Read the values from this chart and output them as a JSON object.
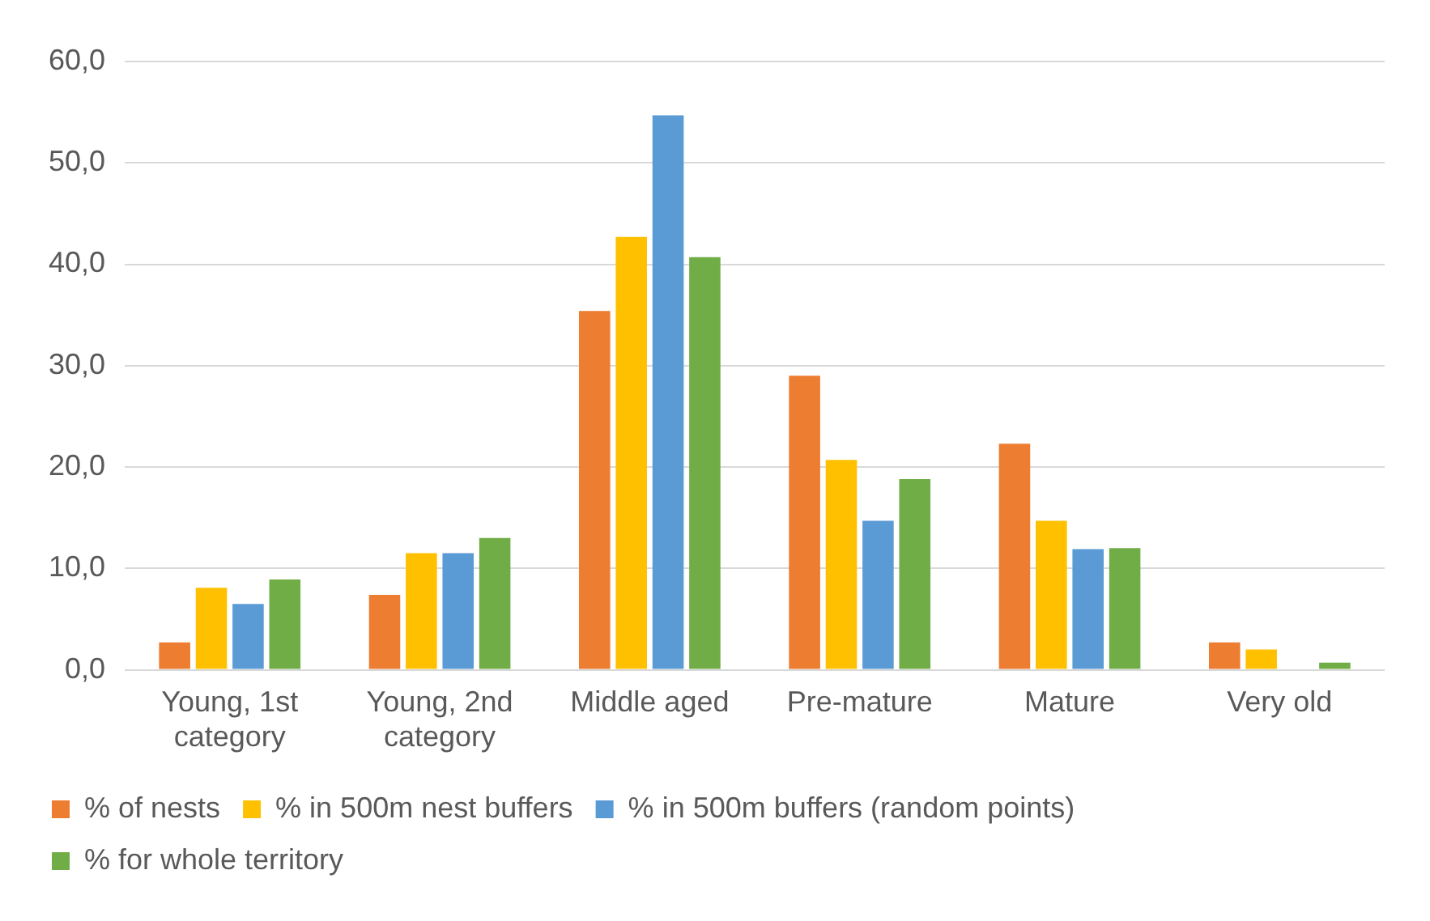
{
  "chart_data": {
    "type": "bar",
    "categories": [
      "Young, 1st category",
      "Young, 2nd category",
      "Middle aged",
      "Pre-mature",
      "Mature",
      "Very old"
    ],
    "series": [
      {
        "name": "% of nests",
        "color": "#ed7d31",
        "values": [
          2.7,
          7.4,
          35.4,
          29.0,
          22.3,
          2.7
        ]
      },
      {
        "name": "% in 500m nest buffers",
        "color": "#ffc000",
        "values": [
          8.1,
          11.5,
          42.7,
          20.7,
          14.7,
          2.0
        ]
      },
      {
        "name": "% in 500m buffers (random points)",
        "color": "#5b9bd5",
        "values": [
          6.5,
          11.5,
          54.7,
          14.7,
          11.9,
          0
        ]
      },
      {
        "name": "% for whole territory",
        "color": "#70ad47",
        "values": [
          8.9,
          13.0,
          40.7,
          18.8,
          12.0,
          0.7
        ]
      }
    ],
    "ylim": [
      0,
      60
    ],
    "yticks": [
      {
        "value": 0,
        "label": "0,0"
      },
      {
        "value": 10,
        "label": "10,0"
      },
      {
        "value": 20,
        "label": "20,0"
      },
      {
        "value": 30,
        "label": "30,0"
      },
      {
        "value": 40,
        "label": "40,0"
      },
      {
        "value": 50,
        "label": "50,0"
      },
      {
        "value": 60,
        "label": "60,0"
      }
    ],
    "grid": "y",
    "legend": "bottom"
  }
}
